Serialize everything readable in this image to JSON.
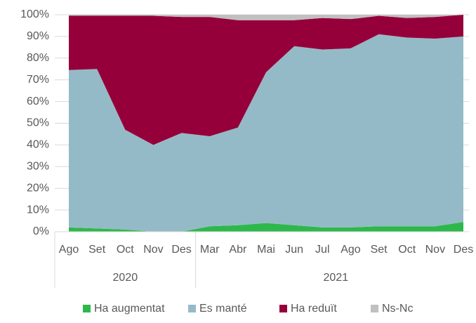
{
  "chart_data": {
    "type": "stacked_area",
    "groups": [
      {
        "label": "2020",
        "categories": [
          "Ago",
          "Set",
          "Oct",
          "Nov",
          "Des"
        ]
      },
      {
        "label": "2021",
        "categories": [
          "Mar",
          "Abr",
          "Mai",
          "Jun",
          "Jul",
          "Ago",
          "Set",
          "Oct",
          "Nov",
          "Des"
        ]
      }
    ],
    "series": [
      {
        "name": "Ha augmentat",
        "color": "#2db84b",
        "values": [
          2,
          1.5,
          1,
          0,
          0,
          2.5,
          3,
          4,
          3,
          2,
          2,
          2.5,
          2.5,
          2.5,
          4.5
        ]
      },
      {
        "name": "Es manté",
        "color": "#95bac7",
        "values": [
          72.5,
          73.5,
          46,
          40,
          45.5,
          41.5,
          45,
          69.5,
          82.5,
          82,
          82.5,
          88.5,
          87,
          86.5,
          85.5
        ]
      },
      {
        "name": "Ha reduït",
        "color": "#95003a",
        "values": [
          25,
          24.5,
          52.5,
          59.5,
          53.5,
          55,
          49.5,
          24,
          12,
          14.5,
          13.5,
          8.5,
          9,
          10,
          10
        ]
      },
      {
        "name": "Ns-Nc",
        "color": "#c0c0c0",
        "values": [
          0.5,
          0.5,
          0.5,
          0.5,
          1,
          1,
          2.5,
          2.5,
          2.5,
          1.5,
          2,
          0.5,
          1.5,
          1,
          0
        ]
      }
    ],
    "ylim": [
      0,
      100
    ],
    "yticks": [
      {
        "value": 0,
        "label": "0%"
      },
      {
        "value": 10,
        "label": "10%"
      },
      {
        "value": 20,
        "label": "20%"
      },
      {
        "value": 30,
        "label": "30%"
      },
      {
        "value": 40,
        "label": "40%"
      },
      {
        "value": 50,
        "label": "50%"
      },
      {
        "value": 60,
        "label": "60%"
      },
      {
        "value": 70,
        "label": "70%"
      },
      {
        "value": 80,
        "label": "80%"
      },
      {
        "value": 90,
        "label": "90%"
      },
      {
        "value": 100,
        "label": "100%"
      }
    ],
    "grid": true,
    "legend": "bottom"
  }
}
